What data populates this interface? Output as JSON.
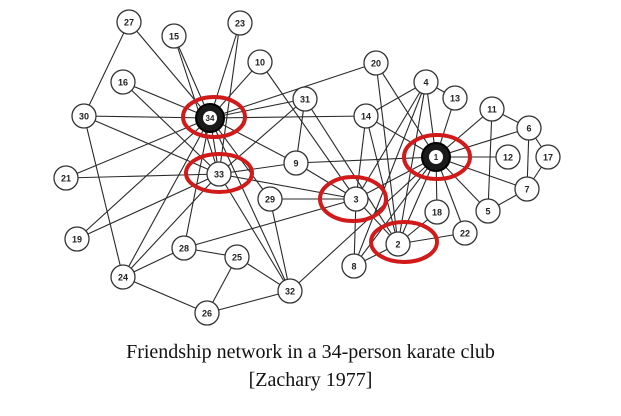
{
  "caption": {
    "line1": "Friendship network in a 34-person karate club",
    "line2": "[Zachary 1977]"
  },
  "colors": {
    "highlight": "#d11a1a",
    "edge": "#2a2a2a",
    "hub_fill": "#1a1a1a"
  },
  "nodes": [
    {
      "id": "1",
      "label": "1"
    },
    {
      "id": "2",
      "label": "2"
    },
    {
      "id": "3",
      "label": "3"
    },
    {
      "id": "4",
      "label": "4"
    },
    {
      "id": "5",
      "label": "5"
    },
    {
      "id": "6",
      "label": "6"
    },
    {
      "id": "7",
      "label": "7"
    },
    {
      "id": "8",
      "label": "8"
    },
    {
      "id": "9",
      "label": "9"
    },
    {
      "id": "10",
      "label": "10"
    },
    {
      "id": "11",
      "label": "11"
    },
    {
      "id": "12",
      "label": "12"
    },
    {
      "id": "13",
      "label": "13"
    },
    {
      "id": "14",
      "label": "14"
    },
    {
      "id": "15",
      "label": "15"
    },
    {
      "id": "16",
      "label": "16"
    },
    {
      "id": "17",
      "label": "17"
    },
    {
      "id": "18",
      "label": "18"
    },
    {
      "id": "19",
      "label": "19"
    },
    {
      "id": "20",
      "label": "20"
    },
    {
      "id": "21",
      "label": "21"
    },
    {
      "id": "22",
      "label": "22"
    },
    {
      "id": "23",
      "label": "23"
    },
    {
      "id": "24",
      "label": "24"
    },
    {
      "id": "25",
      "label": "25"
    },
    {
      "id": "26",
      "label": "26"
    },
    {
      "id": "27",
      "label": "27"
    },
    {
      "id": "28",
      "label": "28"
    },
    {
      "id": "29",
      "label": "29"
    },
    {
      "id": "30",
      "label": "30"
    },
    {
      "id": "31",
      "label": "31"
    },
    {
      "id": "32",
      "label": "32"
    },
    {
      "id": "33",
      "label": "33"
    },
    {
      "id": "34",
      "label": "34"
    }
  ],
  "hubs": [
    "1",
    "34"
  ],
  "highlighted": [
    "34",
    "33",
    "3",
    "1",
    "2"
  ],
  "edges": [
    [
      "1",
      "2"
    ],
    [
      "1",
      "3"
    ],
    [
      "1",
      "4"
    ],
    [
      "1",
      "5"
    ],
    [
      "1",
      "6"
    ],
    [
      "1",
      "7"
    ],
    [
      "1",
      "8"
    ],
    [
      "1",
      "9"
    ],
    [
      "1",
      "11"
    ],
    [
      "1",
      "12"
    ],
    [
      "1",
      "13"
    ],
    [
      "1",
      "14"
    ],
    [
      "1",
      "18"
    ],
    [
      "1",
      "20"
    ],
    [
      "1",
      "22"
    ],
    [
      "1",
      "32"
    ],
    [
      "2",
      "3"
    ],
    [
      "2",
      "4"
    ],
    [
      "2",
      "8"
    ],
    [
      "2",
      "14"
    ],
    [
      "2",
      "18"
    ],
    [
      "2",
      "20"
    ],
    [
      "2",
      "22"
    ],
    [
      "2",
      "31"
    ],
    [
      "3",
      "4"
    ],
    [
      "3",
      "8"
    ],
    [
      "3",
      "9"
    ],
    [
      "3",
      "10"
    ],
    [
      "3",
      "14"
    ],
    [
      "3",
      "28"
    ],
    [
      "3",
      "29"
    ],
    [
      "3",
      "33"
    ],
    [
      "4",
      "8"
    ],
    [
      "4",
      "13"
    ],
    [
      "4",
      "14"
    ],
    [
      "5",
      "7"
    ],
    [
      "5",
      "11"
    ],
    [
      "6",
      "7"
    ],
    [
      "6",
      "11"
    ],
    [
      "6",
      "17"
    ],
    [
      "7",
      "17"
    ],
    [
      "9",
      "31"
    ],
    [
      "9",
      "33"
    ],
    [
      "9",
      "34"
    ],
    [
      "10",
      "34"
    ],
    [
      "14",
      "34"
    ],
    [
      "15",
      "33"
    ],
    [
      "15",
      "34"
    ],
    [
      "16",
      "33"
    ],
    [
      "16",
      "34"
    ],
    [
      "19",
      "33"
    ],
    [
      "19",
      "34"
    ],
    [
      "20",
      "34"
    ],
    [
      "21",
      "33"
    ],
    [
      "21",
      "34"
    ],
    [
      "23",
      "33"
    ],
    [
      "23",
      "34"
    ],
    [
      "24",
      "26"
    ],
    [
      "24",
      "28"
    ],
    [
      "24",
      "30"
    ],
    [
      "24",
      "33"
    ],
    [
      "24",
      "34"
    ],
    [
      "25",
      "26"
    ],
    [
      "25",
      "28"
    ],
    [
      "25",
      "32"
    ],
    [
      "26",
      "32"
    ],
    [
      "27",
      "30"
    ],
    [
      "27",
      "34"
    ],
    [
      "28",
      "34"
    ],
    [
      "29",
      "32"
    ],
    [
      "29",
      "34"
    ],
    [
      "30",
      "33"
    ],
    [
      "30",
      "34"
    ],
    [
      "31",
      "33"
    ],
    [
      "31",
      "34"
    ],
    [
      "32",
      "33"
    ],
    [
      "32",
      "34"
    ],
    [
      "33",
      "34"
    ]
  ]
}
